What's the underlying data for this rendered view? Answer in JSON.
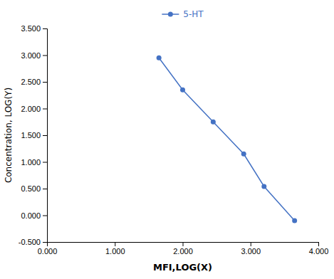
{
  "chart_data": {
    "type": "line",
    "xlabel": "MFI,LOG(X)",
    "ylabel": "Concentration, LOG(Y)",
    "x": [
      1.65,
      2.0,
      2.45,
      2.9,
      3.2,
      3.65
    ],
    "series": [
      {
        "name": "5-HT",
        "color": "#4472C4",
        "marker": "circle",
        "values": [
          2.95,
          2.35,
          1.75,
          1.15,
          0.54,
          -0.1
        ]
      }
    ],
    "xlim": [
      0.0,
      4.0
    ],
    "ylim": [
      -0.5,
      3.5
    ],
    "xticks": [
      {
        "value": 0.0,
        "label": "0.000"
      },
      {
        "value": 1.0,
        "label": "1.000"
      },
      {
        "value": 2.0,
        "label": "2.000"
      },
      {
        "value": 3.0,
        "label": "3.000"
      },
      {
        "value": 4.0,
        "label": "4.000"
      }
    ],
    "yticks": [
      {
        "value": -0.5,
        "label": "-0.500"
      },
      {
        "value": 0.0,
        "label": "0.000"
      },
      {
        "value": 0.5,
        "label": "0.500"
      },
      {
        "value": 1.0,
        "label": "1.000"
      },
      {
        "value": 1.5,
        "label": "1.500"
      },
      {
        "value": 2.0,
        "label": "2.000"
      },
      {
        "value": 2.5,
        "label": "2.500"
      },
      {
        "value": 3.0,
        "label": "3.000"
      },
      {
        "value": 3.5,
        "label": "3.500"
      }
    ],
    "grid": false,
    "legend": "top"
  }
}
